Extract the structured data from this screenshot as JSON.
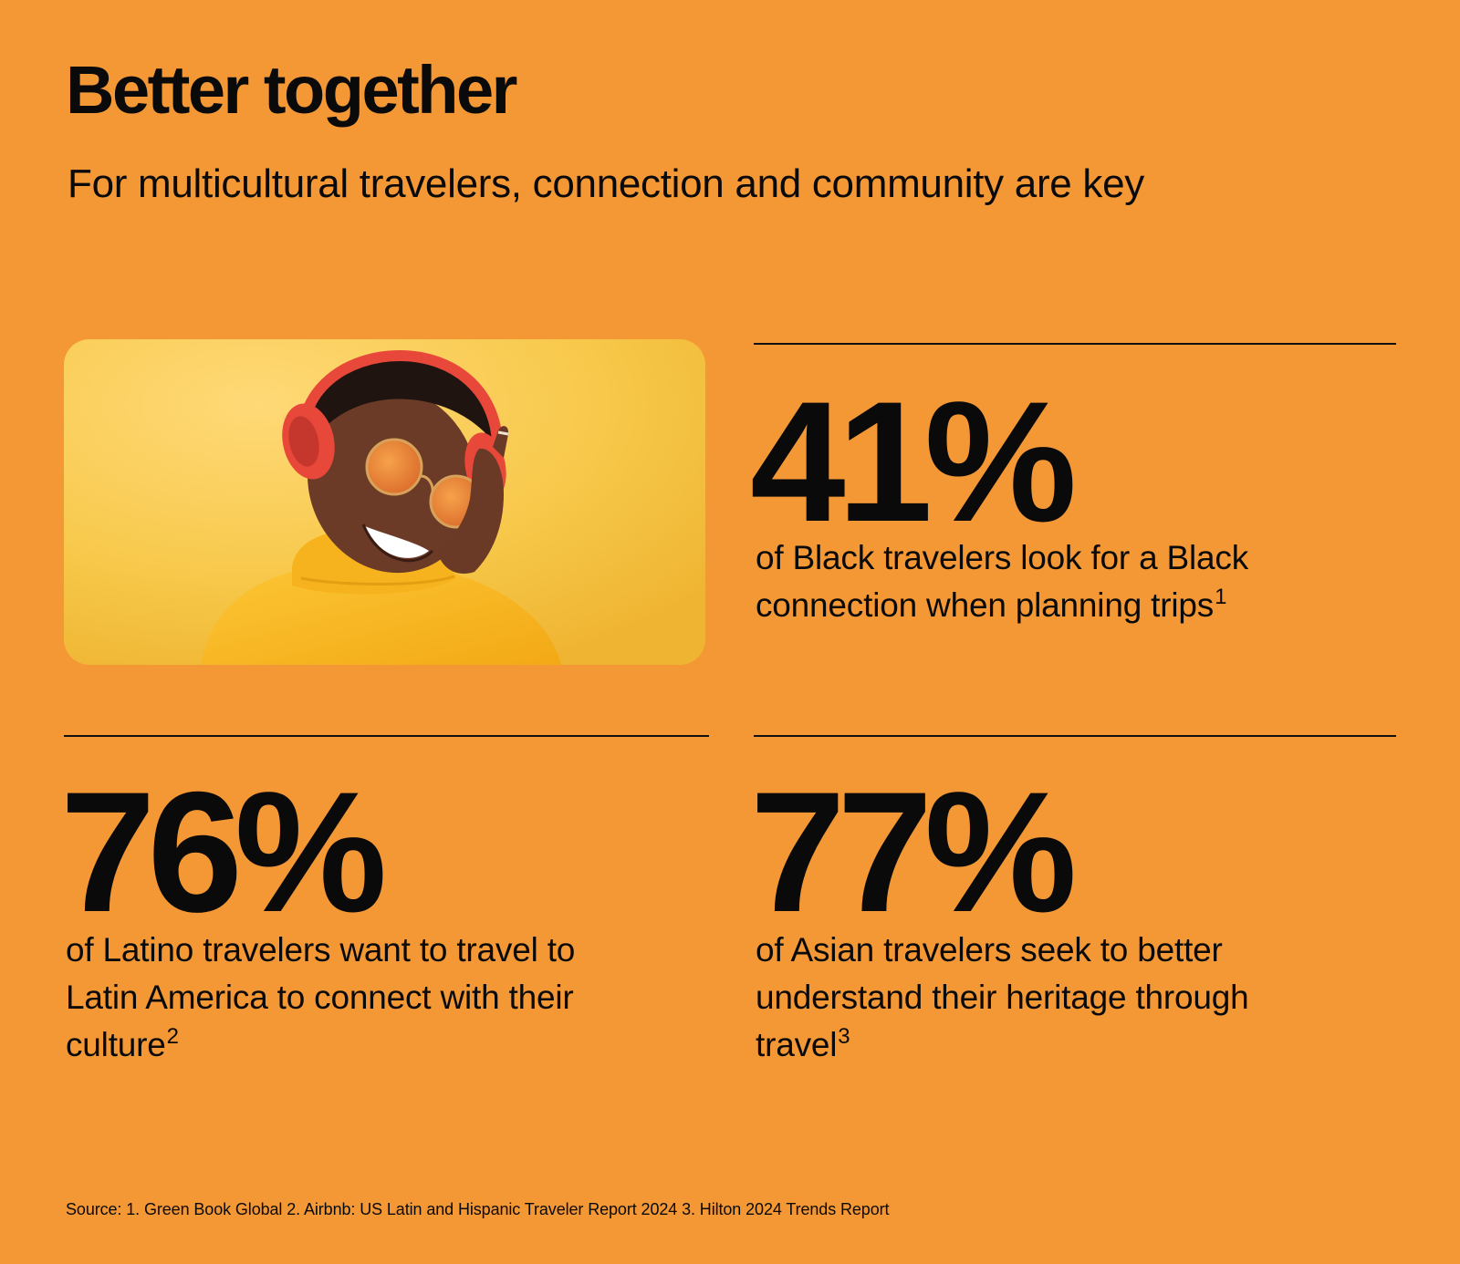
{
  "header": {
    "title": "Better together",
    "subtitle": "For multicultural travelers, connection and community are key"
  },
  "stats": [
    {
      "value": "41%",
      "description": "of Black travelers look for a Black connection when planning trips",
      "footnote": "1"
    },
    {
      "value": "76%",
      "description": "of Latino travelers want to travel to Latin America to connect with their culture",
      "footnote": "2"
    },
    {
      "value": "77%",
      "description": "of Asian travelers seek to better understand their heritage through travel",
      "footnote": "3"
    }
  ],
  "photo": {
    "icon": "smiling-woman-with-headphones-photo"
  },
  "footer": {
    "source": "Source: 1. Green Book Global 2. Airbnb: US Latin and Hispanic Traveler Report 2024 3. Hilton 2024 Trends Report"
  },
  "colors": {
    "background": "#f49836",
    "text": "#0a0a0a",
    "photo_background": "#f5c438",
    "sweater": "#f7b81c",
    "headphones": "#e8483a"
  }
}
